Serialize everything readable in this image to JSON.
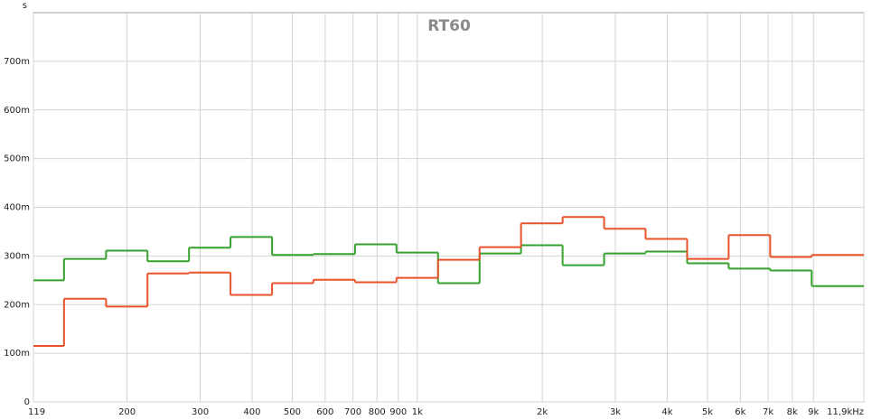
{
  "chart_data": {
    "type": "step",
    "title": "RT60",
    "y_label": "s",
    "x_log": true,
    "grid": true,
    "xlim": [
      119,
      11900
    ],
    "xticks": [
      119,
      200,
      300,
      400,
      500,
      600,
      700,
      800,
      900,
      {
        "value": 1000,
        "label": "1k"
      },
      {
        "value": 2000,
        "label": "2k"
      },
      {
        "value": 3000,
        "label": "3k"
      },
      {
        "value": 4000,
        "label": "4k"
      },
      {
        "value": 5000,
        "label": "5k"
      },
      {
        "value": 6000,
        "label": "6k"
      },
      {
        "value": 7000,
        "label": "7k"
      },
      {
        "value": 8000,
        "label": "8k"
      },
      {
        "value": 9000,
        "label": "9k"
      },
      {
        "value": 11900,
        "label": "11,9kHz"
      }
    ],
    "ylim": [
      0,
      0.8
    ],
    "yticks": [
      0,
      {
        "value": 0.1,
        "label": "100m"
      },
      {
        "value": 0.2,
        "label": "200m"
      },
      {
        "value": 0.3,
        "label": "300m"
      },
      {
        "value": 0.4,
        "label": "400m"
      },
      {
        "value": 0.5,
        "label": "500m"
      },
      {
        "value": 0.6,
        "label": "600m"
      },
      {
        "value": 0.7,
        "label": "700m"
      }
    ],
    "x": [
      119,
      141,
      178,
      224,
      282,
      355,
      447,
      562,
      708,
      891,
      1122,
      1413,
      1778,
      2239,
      2818,
      3548,
      4467,
      5623,
      7079,
      8913
    ],
    "series": [
      {
        "color": "#36a12c",
        "values": [
          0.25,
          0.294,
          0.311,
          0.289,
          0.317,
          0.339,
          0.302,
          0.304,
          0.324,
          0.307,
          0.244,
          0.305,
          0.322,
          0.281,
          0.305,
          0.309,
          0.285,
          0.274,
          0.27,
          0.238
        ]
      },
      {
        "color": "#e8532a",
        "values": [
          0.115,
          0.212,
          0.196,
          0.264,
          0.266,
          0.22,
          0.244,
          0.251,
          0.246,
          0.255,
          0.292,
          0.318,
          0.367,
          0.38,
          0.356,
          0.335,
          0.294,
          0.343,
          0.298,
          0.302
        ]
      }
    ]
  }
}
